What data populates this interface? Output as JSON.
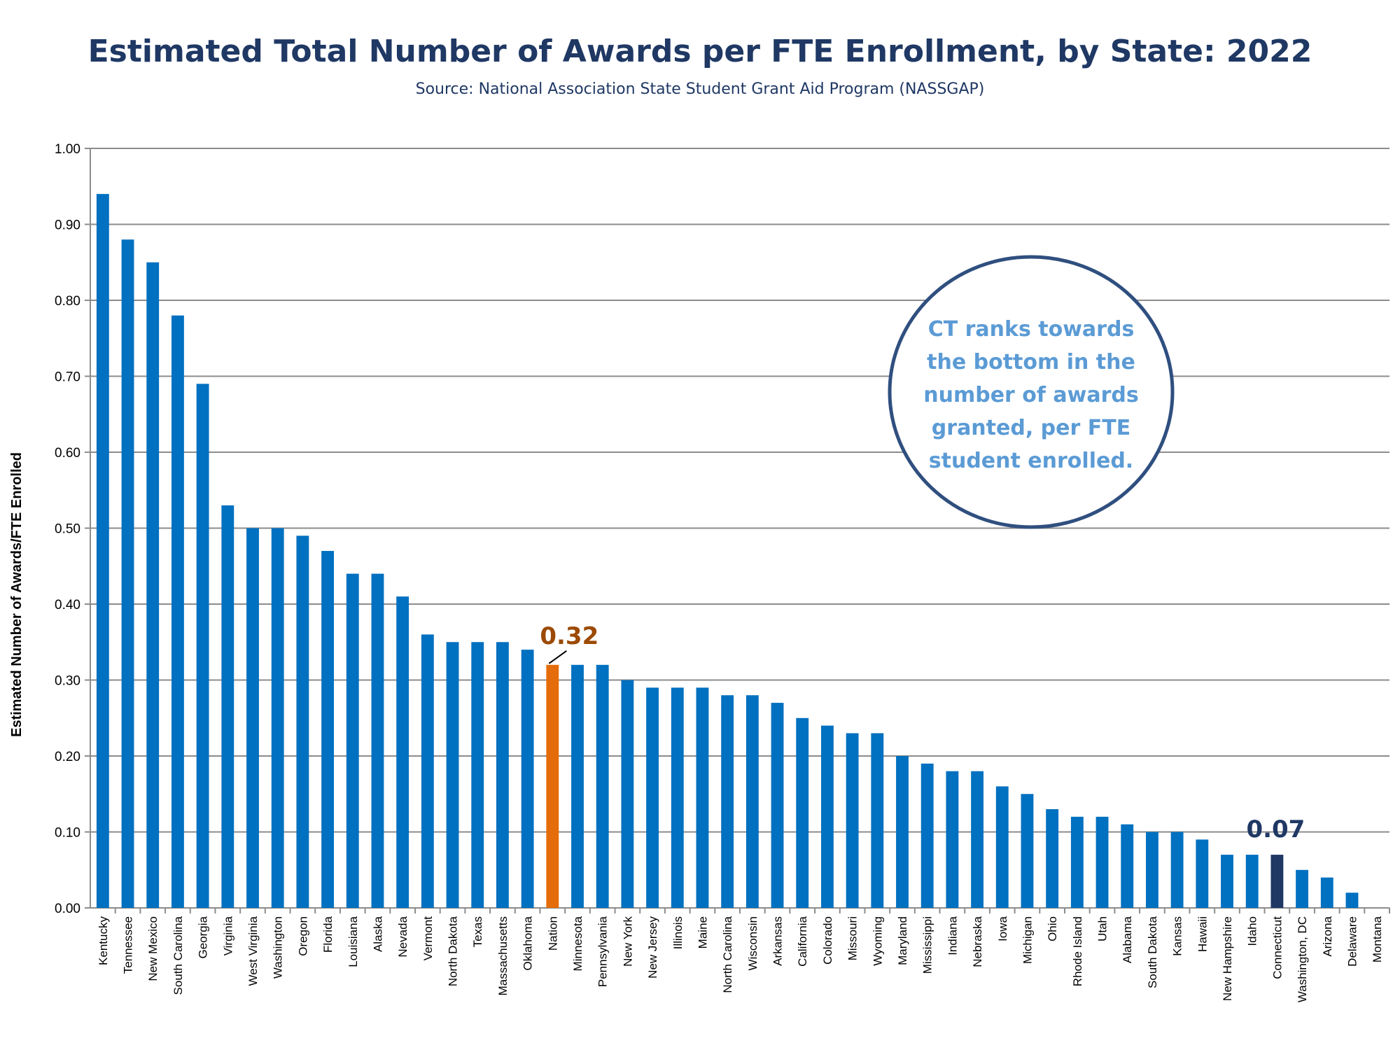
{
  "chart_data": {
    "type": "bar",
    "title": "Estimated Total Number of Awards per FTE Enrollment, by State: 2022",
    "subtitle": "Source: National Association State Student Grant Aid Program (NASSGAP)",
    "ylabel": "Estimated Number of Awards/FTE Enrolled",
    "xlabel": "",
    "ylim": [
      0,
      1.0
    ],
    "yticks": [
      "0.00",
      "0.10",
      "0.20",
      "0.30",
      "0.40",
      "0.50",
      "0.60",
      "0.70",
      "0.80",
      "0.90",
      "1.00"
    ],
    "grid": true,
    "categories": [
      "Kentucky",
      "Tennessee",
      "New Mexico",
      "South Carolina",
      "Georgia",
      "Virginia",
      "West Virginia",
      "Washington",
      "Oregon",
      "Florida",
      "Louisiana",
      "Alaska",
      "Nevada",
      "Vermont",
      "North Dakota",
      "Texas",
      "Massachusetts",
      "Oklahoma",
      "Nation",
      "Minnesota",
      "Pennsylvania",
      "New York",
      "New Jersey",
      "Illinois",
      "Maine",
      "North Carolina",
      "Wisconsin",
      "Arkansas",
      "California",
      "Colorado",
      "Missouri",
      "Wyoming",
      "Maryland",
      "Mississippi",
      "Indiana",
      "Nebraska",
      "Iowa",
      "Michigan",
      "Ohio",
      "Rhode Island",
      "Utah",
      "Alabama",
      "South Dakota",
      "Kansas",
      "Hawaii",
      "New Hampshire",
      "Idaho",
      "Connecticut",
      "Washington, DC",
      "Arizona",
      "Delaware",
      "Montana"
    ],
    "values": [
      0.94,
      0.88,
      0.85,
      0.78,
      0.69,
      0.53,
      0.5,
      0.5,
      0.49,
      0.47,
      0.44,
      0.44,
      0.41,
      0.36,
      0.35,
      0.35,
      0.35,
      0.34,
      0.32,
      0.32,
      0.32,
      0.3,
      0.29,
      0.29,
      0.29,
      0.28,
      0.28,
      0.27,
      0.25,
      0.24,
      0.23,
      0.23,
      0.2,
      0.19,
      0.18,
      0.18,
      0.16,
      0.15,
      0.13,
      0.12,
      0.12,
      0.11,
      0.1,
      0.1,
      0.09,
      0.07,
      0.07,
      0.07,
      0.05,
      0.04,
      0.02,
      0.0
    ],
    "colors": {
      "default": "#0070C0",
      "Nation": "#E46C0A",
      "Connecticut": "#1F3864"
    },
    "callouts": [
      {
        "category": "Nation",
        "label": "0.32",
        "color": "#9C4A05"
      },
      {
        "category": "Connecticut",
        "label": "0.07",
        "color": "#1F3864"
      }
    ],
    "annotation": {
      "lines": [
        "CT ranks towards",
        "the bottom in the",
        "number of awards",
        "granted, per FTE",
        "student enrolled."
      ],
      "text_color": "#5B9BD5",
      "border_color": "#2F4F7F"
    }
  }
}
